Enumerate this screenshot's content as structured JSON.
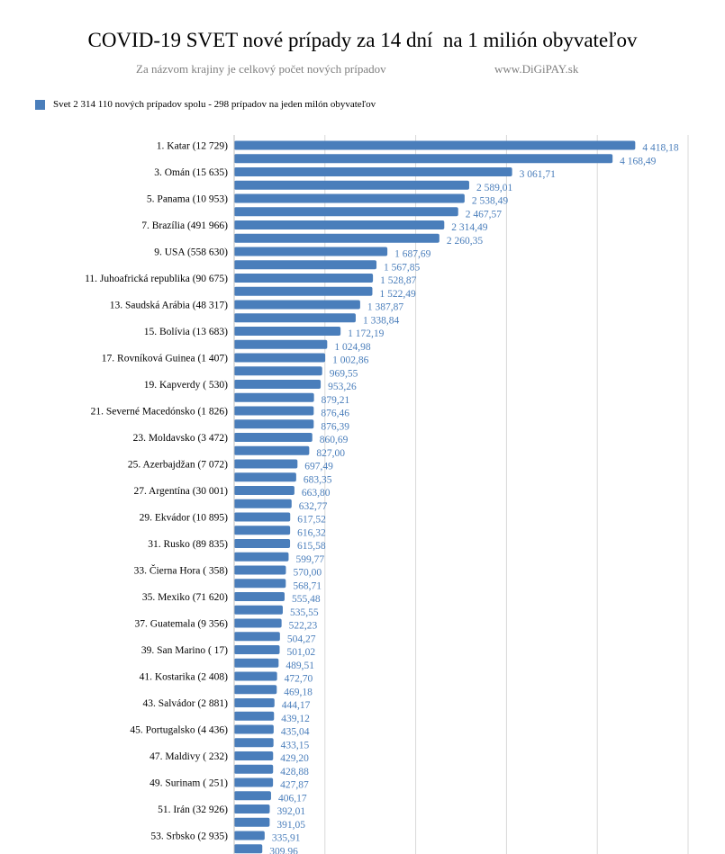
{
  "chart_data": {
    "type": "bar",
    "orientation": "horizontal",
    "title": "COVID-19 SVET nové prípady za 14 dní  na 1 milión obyvateľov",
    "subtitle": "Za názvom krajiny je celkový počet nových prípadov",
    "credit": "www.DiGiPAY.sk",
    "legend": {
      "position": "top-left",
      "label": "Svet 2 314 110 nových prípadov spolu -  298 prípadov na jeden milón obyvateľov"
    },
    "grid": true,
    "xlim": [
      0,
      5000
    ],
    "bar_color": "#4a7ebb",
    "label_color": "#4a7ebb",
    "categories": [
      "1. Katar (12 729)",
      "",
      "3. Omán (15 635)",
      "",
      "5. Panama (10 953)",
      "",
      "7. Brazília (491 966)",
      "",
      "9. USA (558 630)",
      "",
      "11. Juhoafrická republika (90 675)",
      "",
      "13. Saudská Arábia (48 317)",
      "",
      "15. Bolívia (13 683)",
      "",
      "17. Rovníková Guinea (1 407)",
      "",
      "19. Kapverdy ( 530)",
      "",
      "21. Severné Macedónsko (1 826)",
      "",
      "23. Moldavsko (3 472)",
      "",
      "25. Azerbajdžan (7 072)",
      "",
      "27. Argentína (30 001)",
      "",
      "29. Ekvádor (10 895)",
      "",
      "31. Rusko (89 835)",
      "",
      "33. Čierna Hora ( 358)",
      "",
      "35. Mexiko (71 620)",
      "",
      "37. Guatemala (9 356)",
      "",
      "39. San Marino ( 17)",
      "",
      "41. Kostarika (2 408)",
      "",
      "43. Salvádor (2 881)",
      "",
      "45. Portugalsko (4 436)",
      "",
      "47. Maldivy ( 232)",
      "",
      "49. Surinam ( 251)",
      "",
      "51. Irán (32 926)",
      "",
      "53. Srbsko (2 935)",
      ""
    ],
    "values": [
      4418.18,
      4168.49,
      3061.71,
      2589.01,
      2538.49,
      2467.57,
      2314.49,
      2260.35,
      1687.69,
      1567.85,
      1528.87,
      1522.49,
      1387.87,
      1338.84,
      1172.19,
      1024.98,
      1002.86,
      969.55,
      953.26,
      879.21,
      876.46,
      876.39,
      860.69,
      827.0,
      697.49,
      683.35,
      663.8,
      632.77,
      617.52,
      616.32,
      615.58,
      599.77,
      570.0,
      568.71,
      555.48,
      535.55,
      522.23,
      504.27,
      501.02,
      489.51,
      472.7,
      469.18,
      444.17,
      439.12,
      435.04,
      433.15,
      429.2,
      428.88,
      427.87,
      406.17,
      392.01,
      391.05,
      335.91,
      309.96
    ],
    "value_labels": [
      "4 418,18",
      "4 168,49",
      "3 061,71",
      "2 589,01",
      "2 538,49",
      "2 467,57",
      "2 314,49",
      "2 260,35",
      "1 687,69",
      "1 567,85",
      "1 528,87",
      "1 522,49",
      "1 387,87",
      "1 338,84",
      "1 172,19",
      "1 024,98",
      "1 002,86",
      "969,55",
      "953,26",
      "879,21",
      "876,46",
      "876,39",
      "860,69",
      "827,00",
      "697,49",
      "683,35",
      "663,80",
      "632,77",
      "617,52",
      "616,32",
      "615,58",
      "599,77",
      "570,00",
      "568,71",
      "555,48",
      "535,55",
      "522,23",
      "504,27",
      "501,02",
      "489,51",
      "472,70",
      "469,18",
      "444,17",
      "439,12",
      "435,04",
      "433,15",
      "429,20",
      "428,88",
      "427,87",
      "406,17",
      "392,01",
      "391,05",
      "335,91",
      "309,96"
    ]
  }
}
